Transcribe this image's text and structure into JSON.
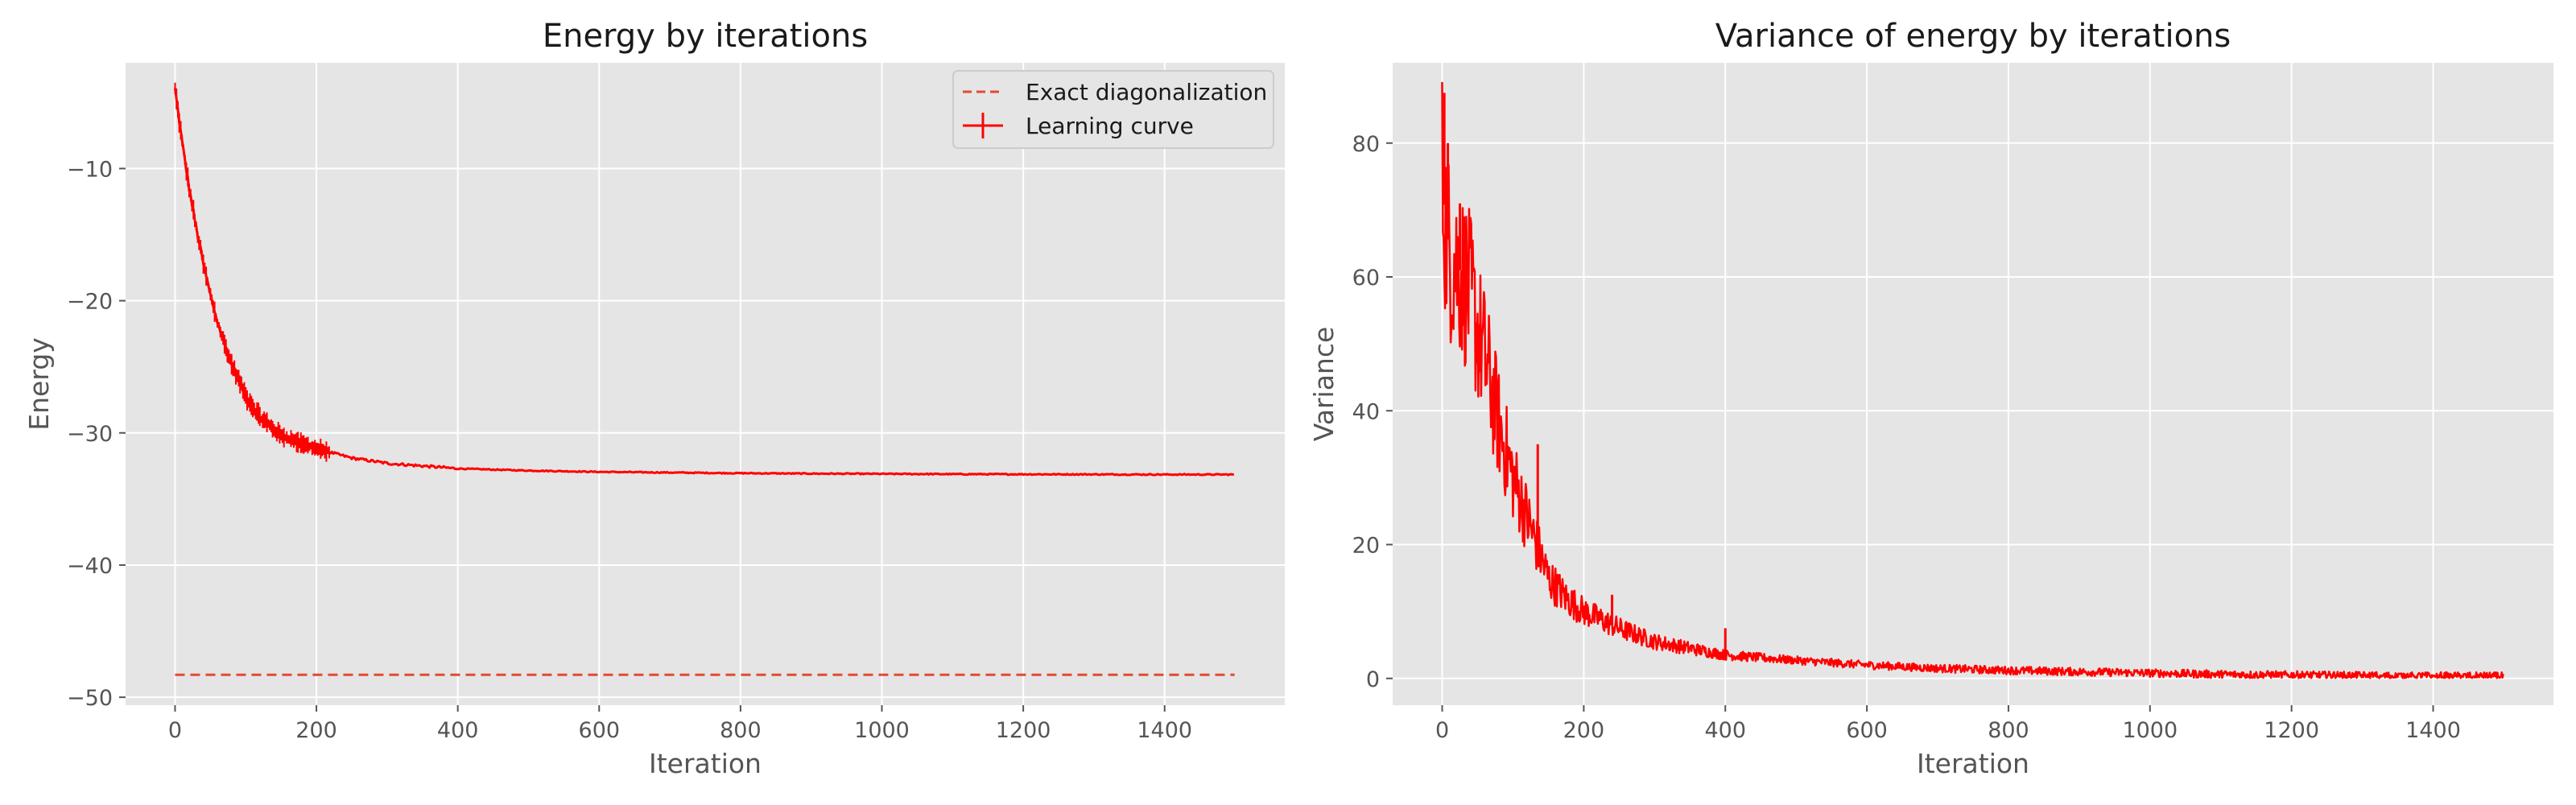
{
  "chart_data": [
    {
      "type": "line",
      "title": "Energy by iterations",
      "xlabel": "Iteration",
      "ylabel": "Energy",
      "xlim": [
        -70,
        1570
      ],
      "ylim": [
        -50.6,
        -2.0
      ],
      "xticks": [
        0,
        200,
        400,
        600,
        800,
        1000,
        1200,
        1400
      ],
      "yticks": [
        -50,
        -40,
        -30,
        -20,
        -10
      ],
      "ytick_labels": [
        "−50",
        "−40",
        "−30",
        "−20",
        "−10"
      ],
      "grid": true,
      "legend_position": "top-right",
      "series": [
        {
          "name": "Exact diagonalization",
          "style": "dashed",
          "color": "#e24a33",
          "x": [
            0,
            1499
          ],
          "y": [
            -48.3,
            -48.3
          ]
        },
        {
          "name": "Learning curve",
          "style": "solid-with-errorbars",
          "color": "#ff0000",
          "x": [
            0,
            10,
            20,
            30,
            40,
            50,
            60,
            70,
            80,
            100,
            120,
            150,
            200,
            250,
            300,
            400,
            500,
            600,
            700,
            800,
            900,
            1000,
            1100,
            1200,
            1300,
            1400,
            1499
          ],
          "y": [
            -4.0,
            -8.0,
            -11.5,
            -14.5,
            -17.2,
            -19.6,
            -21.6,
            -23.3,
            -24.8,
            -27.2,
            -28.8,
            -30.2,
            -31.2,
            -31.9,
            -32.3,
            -32.7,
            -32.85,
            -32.95,
            -33.0,
            -33.05,
            -33.08,
            -33.1,
            -33.12,
            -33.13,
            -33.14,
            -33.15,
            -33.15
          ]
        }
      ]
    },
    {
      "type": "line",
      "title": "Variance of energy by iterations",
      "xlabel": "Iteration",
      "ylabel": "Variance",
      "xlim": [
        -70,
        1570
      ],
      "ylim": [
        -4,
        92
      ],
      "xticks": [
        0,
        200,
        400,
        600,
        800,
        1000,
        1200,
        1400
      ],
      "yticks": [
        0,
        20,
        40,
        60,
        80
      ],
      "grid": true,
      "series": [
        {
          "color": "#ff0000",
          "x": [
            0,
            5,
            10,
            20,
            30,
            40,
            50,
            60,
            70,
            80,
            90,
            100,
            110,
            120,
            130,
            140,
            150,
            175,
            200,
            250,
            300,
            350,
            400,
            500,
            600,
            700,
            800,
            900,
            1000,
            1100,
            1200,
            1300,
            1400,
            1499
          ],
          "y": [
            75,
            68,
            64,
            62,
            60,
            57,
            52,
            48,
            43,
            38,
            34,
            30,
            27,
            24,
            21,
            18,
            15,
            12,
            10,
            7.5,
            5.5,
            4.5,
            3.5,
            2.7,
            2.0,
            1.5,
            1.2,
            1.0,
            0.8,
            0.6,
            0.5,
            0.4,
            0.35,
            0.3
          ],
          "spikes": [
            {
              "x": 3,
              "y": 87.5
            },
            {
              "x": 8,
              "y": 80
            },
            {
              "x": 25,
              "y": 71
            },
            {
              "x": 135,
              "y": 35
            },
            {
              "x": 240,
              "y": 12.5
            },
            {
              "x": 400,
              "y": 7.5
            }
          ]
        }
      ]
    }
  ]
}
